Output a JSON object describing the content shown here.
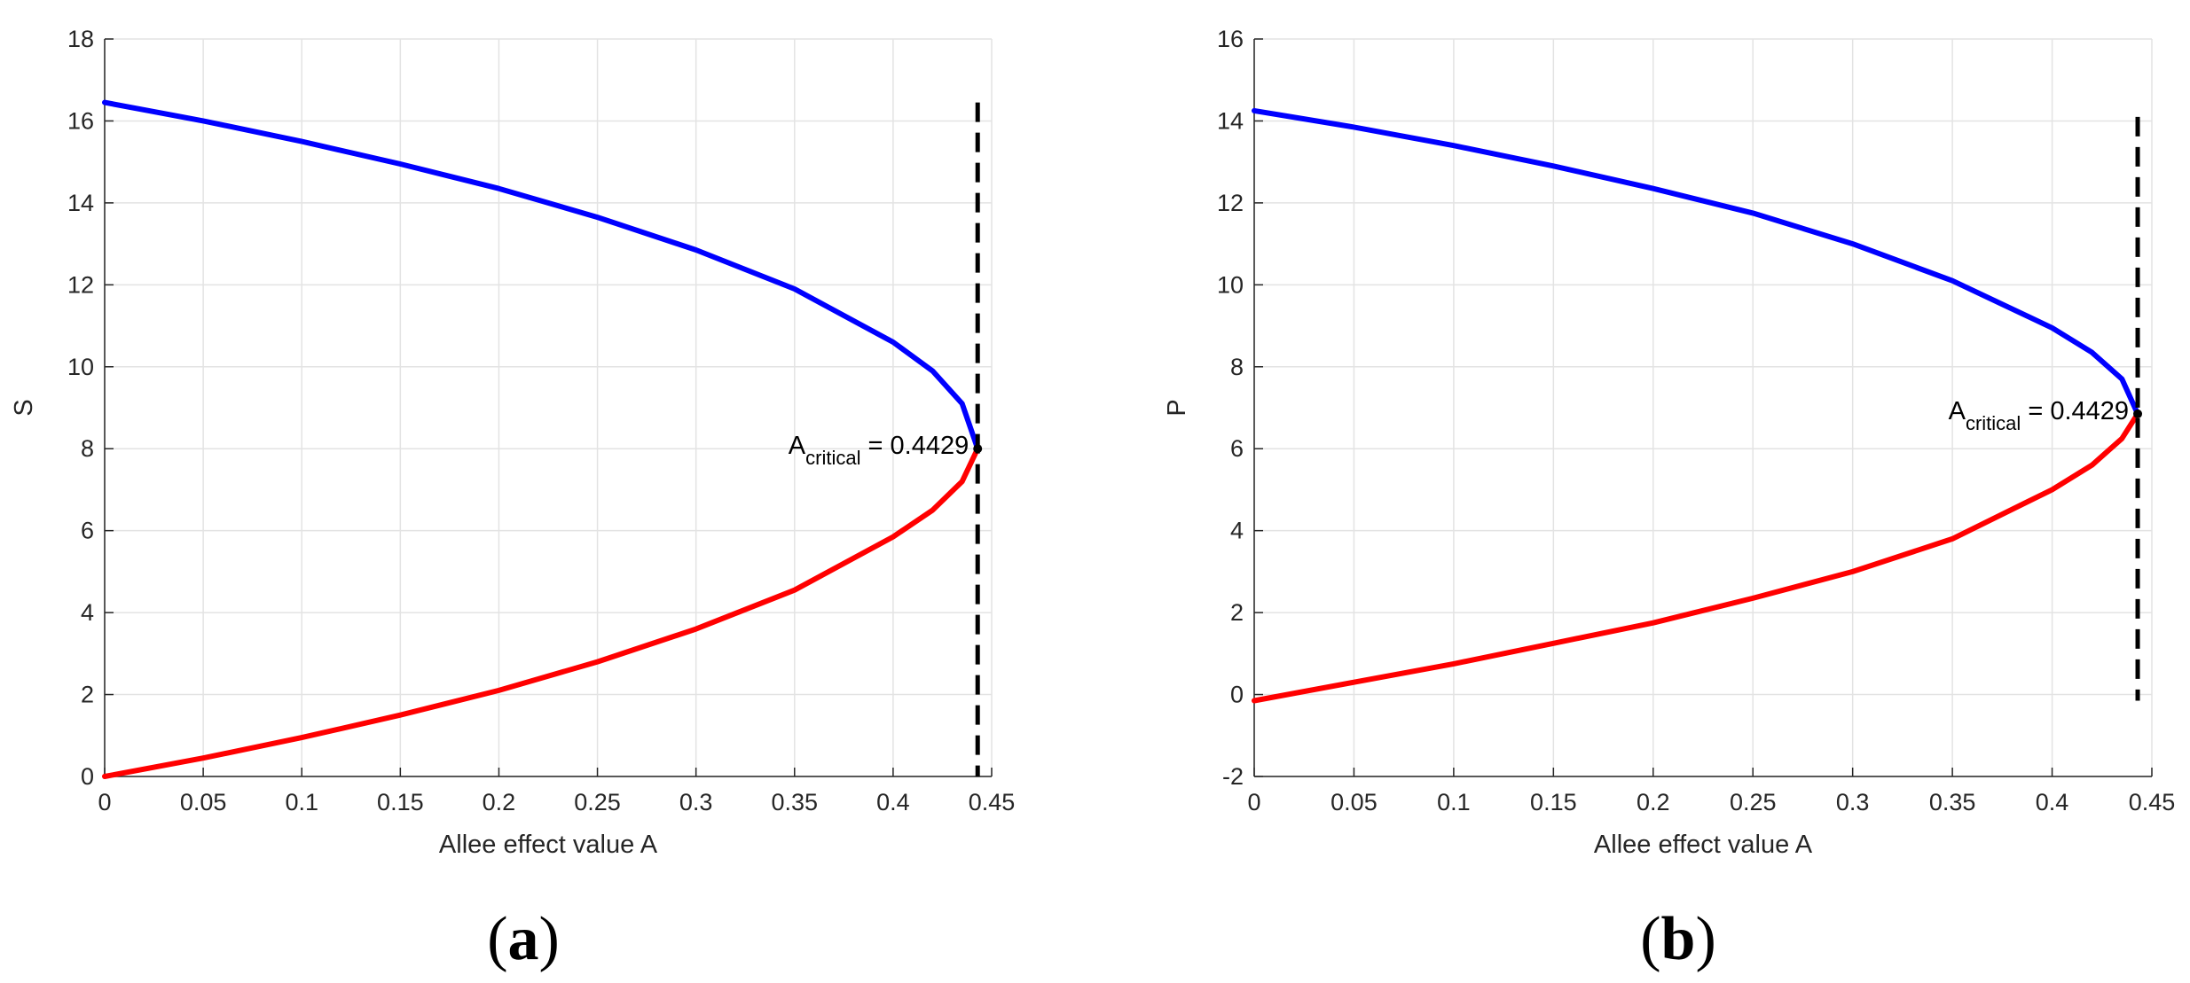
{
  "chart_data": [
    {
      "type": "line",
      "panel_label": "a",
      "xlabel": "Allee effect value A",
      "ylabel": "S",
      "xlim": [
        0,
        0.45
      ],
      "ylim": [
        0,
        18
      ],
      "xticks": [
        "0",
        "0.05",
        "0.1",
        "0.15",
        "0.2",
        "0.25",
        "0.3",
        "0.35",
        "0.4",
        "0.45"
      ],
      "yticks": [
        "0",
        "2",
        "4",
        "6",
        "8",
        "10",
        "12",
        "14",
        "16",
        "18"
      ],
      "grid": true,
      "series": [
        {
          "color": "#0000ff",
          "x": [
            0,
            0.05,
            0.1,
            0.15,
            0.2,
            0.25,
            0.3,
            0.35,
            0.4,
            0.42,
            0.435,
            0.4429
          ],
          "y": [
            16.45,
            16.0,
            15.5,
            14.95,
            14.35,
            13.65,
            12.85,
            11.9,
            10.6,
            9.9,
            9.1,
            8.0
          ]
        },
        {
          "color": "#ff0000",
          "x": [
            0,
            0.05,
            0.1,
            0.15,
            0.2,
            0.25,
            0.3,
            0.35,
            0.4,
            0.42,
            0.435,
            0.4429
          ],
          "y": [
            0.0,
            0.45,
            0.95,
            1.5,
            2.1,
            2.8,
            3.6,
            4.55,
            5.85,
            6.5,
            7.2,
            8.0
          ]
        }
      ],
      "vline": {
        "x": 0.4429,
        "ymin": 0,
        "ymax": 16.45,
        "color": "#000000",
        "style": "dashed"
      },
      "marker": {
        "x": 0.4429,
        "y": 8.0
      },
      "annotation": {
        "main": "A",
        "sub": "critical",
        "value": " = 0.4429"
      }
    },
    {
      "type": "line",
      "panel_label": "b",
      "xlabel": "Allee effect value A",
      "ylabel": "P",
      "xlim": [
        0,
        0.45
      ],
      "ylim": [
        -2,
        16
      ],
      "xticks": [
        "0",
        "0.05",
        "0.1",
        "0.15",
        "0.2",
        "0.25",
        "0.3",
        "0.35",
        "0.4",
        "0.45"
      ],
      "yticks": [
        "-2",
        "0",
        "2",
        "4",
        "6",
        "8",
        "10",
        "12",
        "14",
        "16"
      ],
      "grid": true,
      "series": [
        {
          "color": "#0000ff",
          "x": [
            0,
            0.05,
            0.1,
            0.15,
            0.2,
            0.25,
            0.3,
            0.35,
            0.4,
            0.42,
            0.435,
            0.4429
          ],
          "y": [
            14.25,
            13.85,
            13.4,
            12.9,
            12.35,
            11.75,
            11.0,
            10.1,
            8.95,
            8.35,
            7.7,
            6.85
          ]
        },
        {
          "color": "#ff0000",
          "x": [
            0,
            0.05,
            0.1,
            0.15,
            0.2,
            0.25,
            0.3,
            0.35,
            0.4,
            0.42,
            0.435,
            0.4429
          ],
          "y": [
            -0.15,
            0.3,
            0.75,
            1.25,
            1.75,
            2.35,
            3.0,
            3.8,
            5.0,
            5.6,
            6.25,
            6.85
          ]
        }
      ],
      "vline": {
        "x": 0.4429,
        "ymin": -0.15,
        "ymax": 14.1,
        "color": "#000000",
        "style": "dashed"
      },
      "marker": {
        "x": 0.4429,
        "y": 6.85
      },
      "annotation": {
        "main": "A",
        "sub": "critical",
        "value": " = 0.4429"
      }
    }
  ]
}
